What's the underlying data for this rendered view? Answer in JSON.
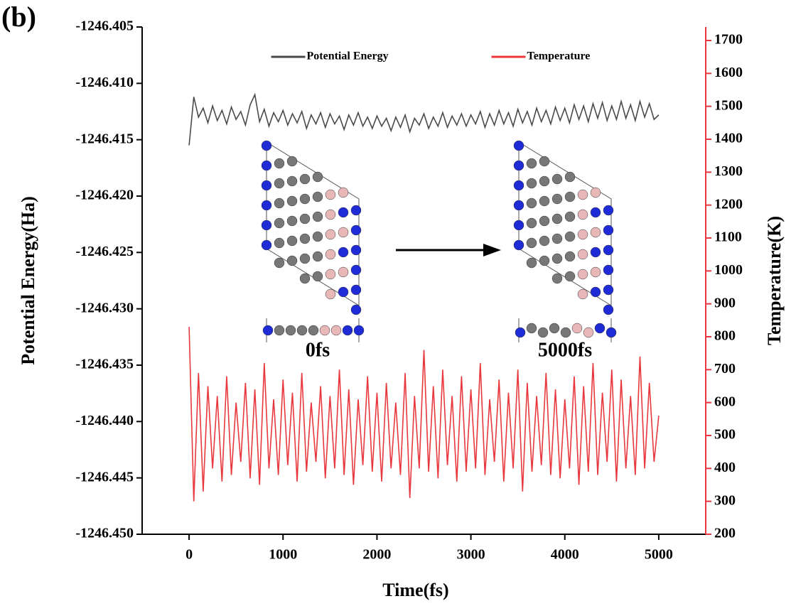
{
  "chart_data": {
    "type": "line",
    "panel_label": "(b)",
    "xlabel": "Time(fs)",
    "ylabel": "Potential Energy(Ha)",
    "y2label": "Temperature(K)",
    "annotations": [
      "0fs",
      "5000fs"
    ],
    "legend": "upper center",
    "xlim": [
      -500,
      5500
    ],
    "xticks": [
      0,
      1000,
      2000,
      3000,
      4000,
      5000
    ],
    "ylim": [
      -1246.45,
      -1246.405
    ],
    "yticks": [
      {
        "value": -1246.45,
        "label": "-1246.450"
      },
      -1246.445,
      {
        "value": -1246.44,
        "label": "-1246.440"
      },
      -1246.435,
      {
        "value": -1246.43,
        "label": "-1246.430"
      },
      -1246.425,
      {
        "value": -1246.42,
        "label": "-1246.420"
      },
      -1246.415,
      {
        "value": -1246.41,
        "label": "-1246.410"
      },
      -1246.405
    ],
    "y2lim": [
      200,
      1741
    ],
    "y2ticks": [
      200,
      300,
      400,
      500,
      600,
      700,
      800,
      900,
      1000,
      1100,
      1200,
      1300,
      1400,
      1500,
      1600,
      1700
    ],
    "y2color": "#e8383d",
    "x": [
      0,
      50,
      100,
      150,
      200,
      250,
      300,
      350,
      400,
      450,
      500,
      550,
      600,
      650,
      700,
      750,
      800,
      850,
      900,
      950,
      1000,
      1050,
      1100,
      1150,
      1200,
      1250,
      1300,
      1350,
      1400,
      1450,
      1500,
      1550,
      1600,
      1650,
      1700,
      1750,
      1800,
      1850,
      1900,
      1950,
      2000,
      2050,
      2100,
      2150,
      2200,
      2250,
      2300,
      2350,
      2400,
      2450,
      2500,
      2550,
      2600,
      2650,
      2700,
      2750,
      2800,
      2850,
      2900,
      2950,
      3000,
      3050,
      3100,
      3150,
      3200,
      3250,
      3300,
      3350,
      3400,
      3450,
      3500,
      3550,
      3600,
      3650,
      3700,
      3750,
      3800,
      3850,
      3900,
      3950,
      4000,
      4050,
      4100,
      4150,
      4200,
      4250,
      4300,
      4350,
      4400,
      4450,
      4500,
      4550,
      4600,
      4650,
      4700,
      4750,
      4800,
      4850,
      4900,
      4950,
      5000
    ],
    "series": [
      {
        "name": "Potential Energy",
        "color": "#4a4a4a",
        "axis": "y",
        "values": [
          -1246.4155,
          -1246.4112,
          -1246.413,
          -1246.4122,
          -1246.4135,
          -1246.412,
          -1246.4133,
          -1246.4124,
          -1246.4136,
          -1246.4121,
          -1246.4132,
          -1246.4125,
          -1246.4137,
          -1246.4119,
          -1246.411,
          -1246.4134,
          -1246.4123,
          -1246.4138,
          -1246.4126,
          -1246.4134,
          -1246.4124,
          -1246.4137,
          -1246.4127,
          -1246.4135,
          -1246.4125,
          -1246.414,
          -1246.4128,
          -1246.4136,
          -1246.4126,
          -1246.4139,
          -1246.4127,
          -1246.4136,
          -1246.4129,
          -1246.4141,
          -1246.4128,
          -1246.4137,
          -1246.4126,
          -1246.4138,
          -1246.413,
          -1246.414,
          -1246.4129,
          -1246.4138,
          -1246.4131,
          -1246.4142,
          -1246.413,
          -1246.4139,
          -1246.4128,
          -1246.4143,
          -1246.4131,
          -1246.4137,
          -1246.4127,
          -1246.414,
          -1246.413,
          -1246.4138,
          -1246.4126,
          -1246.4139,
          -1246.4129,
          -1246.4137,
          -1246.4127,
          -1246.4138,
          -1246.4128,
          -1246.4136,
          -1246.4125,
          -1246.4139,
          -1246.4127,
          -1246.4137,
          -1246.4124,
          -1246.4136,
          -1246.4126,
          -1246.4138,
          -1246.4123,
          -1246.4135,
          -1246.4125,
          -1246.4137,
          -1246.4122,
          -1246.4134,
          -1246.4124,
          -1246.4136,
          -1246.4121,
          -1246.4133,
          -1246.4122,
          -1246.4135,
          -1246.4119,
          -1246.4132,
          -1246.412,
          -1246.4134,
          -1246.4118,
          -1246.4131,
          -1246.4117,
          -1246.4133,
          -1246.412,
          -1246.4132,
          -1246.4116,
          -1246.4131,
          -1246.4119,
          -1246.4133,
          -1246.4116,
          -1246.413,
          -1246.4118,
          -1246.4132,
          -1246.4128
        ]
      },
      {
        "name": "Temperature",
        "color": "#e8383d",
        "axis": "y2",
        "values": [
          830,
          300,
          690,
          330,
          650,
          400,
          620,
          360,
          680,
          380,
          600,
          420,
          660,
          370,
          640,
          350,
          720,
          400,
          610,
          380,
          670,
          410,
          630,
          360,
          690,
          390,
          600,
          420,
          650,
          370,
          620,
          400,
          700,
          380,
          640,
          350,
          610,
          410,
          680,
          390,
          630,
          360,
          660,
          400,
          600,
          380,
          690,
          310,
          620,
          400,
          760,
          390,
          650,
          370,
          700,
          410,
          620,
          360,
          680,
          390,
          640,
          400,
          720,
          380,
          610,
          420,
          670,
          360,
          630,
          400,
          700,
          330,
          660,
          390,
          620,
          410,
          690,
          380,
          640,
          370,
          610,
          400,
          680,
          350,
          650,
          390,
          720,
          380,
          630,
          420,
          700,
          360,
          670,
          400,
          620,
          380,
          740,
          400,
          660,
          420,
          560
        ]
      }
    ]
  }
}
